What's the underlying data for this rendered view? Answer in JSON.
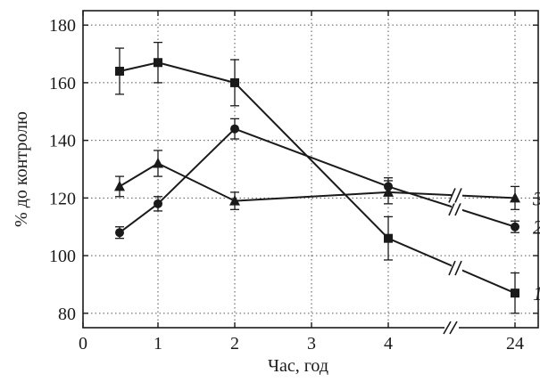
{
  "chart_data": {
    "type": "line",
    "xlabel": "Час, год",
    "ylabel": "% до контролю",
    "x_ticks": [
      "0",
      "1",
      "2",
      "3",
      "4",
      "24"
    ],
    "x_axis_break_between": [
      "4",
      "24"
    ],
    "ylim": [
      75,
      185
    ],
    "y_ticks": [
      80,
      100,
      120,
      140,
      160,
      180
    ],
    "grid": "dotted",
    "marker_color": "#1a1a1a",
    "series": [
      {
        "name": "1",
        "marker": "square",
        "points": [
          {
            "x": "0.5",
            "y": 164,
            "err": 8
          },
          {
            "x": "1",
            "y": 167,
            "err": 7
          },
          {
            "x": "2",
            "y": 160,
            "err": 8
          },
          {
            "x": "4",
            "y": 106,
            "err": 7.5
          },
          {
            "x": "24",
            "y": 87,
            "err": 7
          }
        ]
      },
      {
        "name": "2",
        "marker": "circle",
        "points": [
          {
            "x": "0.5",
            "y": 108,
            "err": 2
          },
          {
            "x": "1",
            "y": 118,
            "err": 2.5
          },
          {
            "x": "2",
            "y": 144,
            "err": 3.5
          },
          {
            "x": "4",
            "y": 124,
            "err": 3
          },
          {
            "x": "24",
            "y": 110,
            "err": 2
          }
        ]
      },
      {
        "name": "3",
        "marker": "triangle",
        "points": [
          {
            "x": "0.5",
            "y": 124,
            "err": 3.5
          },
          {
            "x": "1",
            "y": 132,
            "err": 4.5
          },
          {
            "x": "2",
            "y": 119,
            "err": 3
          },
          {
            "x": "4",
            "y": 122,
            "err": 4
          },
          {
            "x": "24",
            "y": 120,
            "err": 4
          }
        ]
      }
    ]
  }
}
